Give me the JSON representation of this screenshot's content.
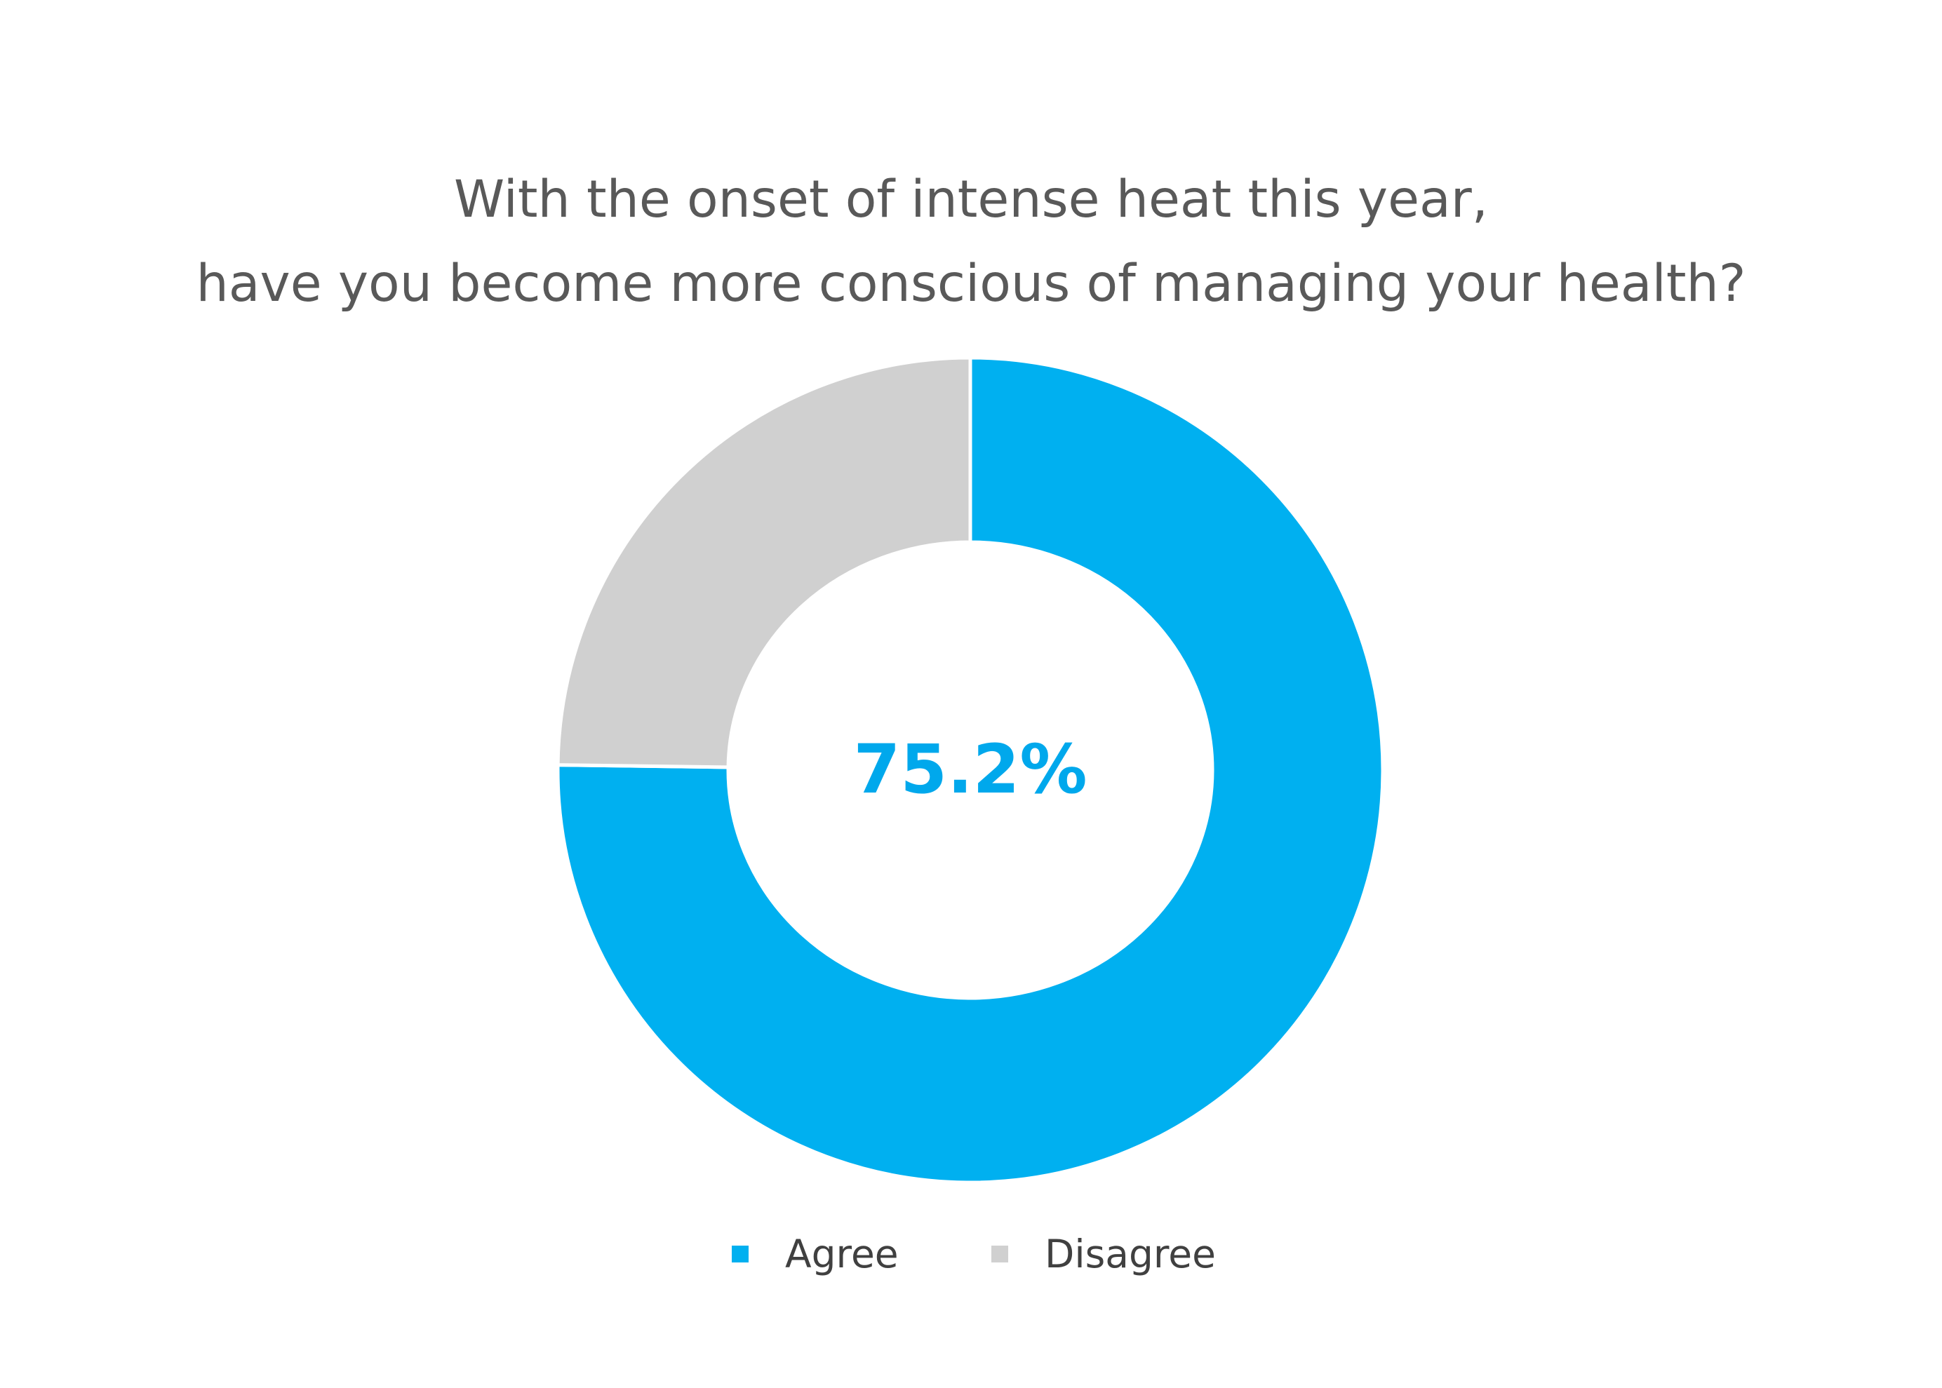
{
  "chart_data": {
    "type": "pie",
    "variant": "donut",
    "title_lines": [
      "With the onset of intense heat this year,",
      "have you become more conscious of managing your health?"
    ],
    "categories": [
      "Agree",
      "Disagree"
    ],
    "values": [
      75.2,
      24.8
    ],
    "colors": [
      "#00B0F0",
      "#D0D0D0"
    ],
    "center_label": "75.2%",
    "center_label_color": "#00A8EC",
    "legend_position": "bottom-center",
    "start_angle": "12-o-clock",
    "direction": "clockwise"
  }
}
